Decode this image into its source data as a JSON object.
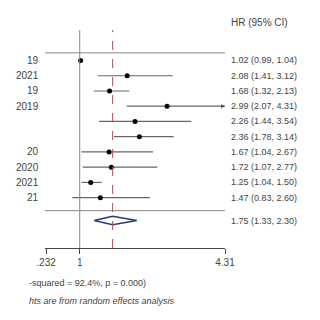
{
  "chart_data": {
    "type": "forest",
    "categories": [
      "19",
      "2021",
      "19",
      "2019",
      null,
      null,
      "20",
      "2020",
      "2021",
      "21"
    ],
    "values": [
      1.02,
      2.08,
      1.68,
      2.99,
      2.26,
      2.36,
      1.67,
      1.72,
      1.25,
      1.47
    ],
    "lo": [
      0.99,
      1.41,
      1.32,
      2.07,
      1.44,
      1.78,
      1.04,
      1.07,
      1.04,
      0.83
    ],
    "hi": [
      1.04,
      3.12,
      2.13,
      4.31,
      3.54,
      3.14,
      2.67,
      2.77,
      1.5,
      2.6
    ],
    "value_labels": [
      "1.02 (0.99, 1.04)",
      "2.08 (1.41, 3.12)",
      "1.68 (1.32, 2.13)",
      "2.99 (2.07, 4.31)",
      "2.26 (1.44, 3.54)",
      "2.36 (1.78, 3.14)",
      "1.67 (1.04, 2.67)",
      "1.72 (1.07, 2.77)",
      "1.25 (1.04, 1.50)",
      "1.47 (0.83, 2.60)"
    ],
    "arrows": [
      false,
      false,
      false,
      true,
      false,
      false,
      false,
      false,
      false,
      false
    ],
    "overall": {
      "value": 1.75,
      "lo": 1.33,
      "hi": 2.3,
      "value_label": "1.75 (1.33, 2.30)"
    },
    "reference_line": 1.0,
    "dashed_line": 1.75,
    "column_header": "HR (95% CI)",
    "note": "-squared = 92.4%, p = 0.000)",
    "footnote": "hts are from random effects analysis",
    "xlim": [
      0.2088,
      4.31
    ],
    "xticks": [
      {
        "value": 0.232,
        "label": ".232"
      },
      1,
      4.31
    ],
    "grid": false
  }
}
